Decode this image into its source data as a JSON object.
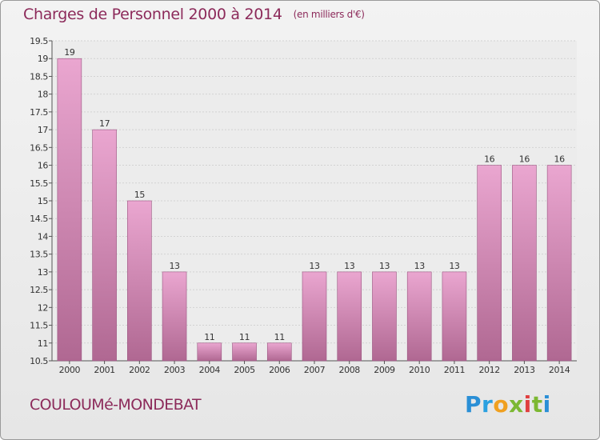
{
  "title": "Charges de Personnel 2000 à 2014",
  "subtitle": "(en milliers d'€)",
  "commune": "COULOUMé-MONDEBAT",
  "brand": {
    "letters": [
      "P",
      "r",
      "o",
      "x",
      "i",
      "t",
      "i"
    ],
    "colors": [
      "#2a8fd6",
      "#2aa0e0",
      "#f0a020",
      "#7cb832",
      "#e04040",
      "#7cb832",
      "#2a8fd6"
    ]
  },
  "colors": {
    "bar_top": "#eaa6d0",
    "bar_bottom": "#b06892",
    "bar_edge": "#9a5580",
    "title": "#8c2a5a"
  },
  "chart_data": {
    "type": "bar",
    "categories": [
      "2000",
      "2001",
      "2002",
      "2003",
      "2004",
      "2005",
      "2006",
      "2007",
      "2008",
      "2009",
      "2010",
      "2011",
      "2012",
      "2013",
      "2014"
    ],
    "values": [
      19,
      17,
      15,
      13,
      11,
      11,
      11,
      13,
      13,
      13,
      13,
      13,
      16,
      16,
      16
    ],
    "data_labels": [
      "19",
      "17",
      "15",
      "13",
      "11",
      "11",
      "11",
      "13",
      "13",
      "13",
      "13",
      "13",
      "16",
      "16",
      "16"
    ],
    "ylim": [
      10.5,
      19.5
    ],
    "yticks": [
      "10.5",
      "11",
      "11.5",
      "12",
      "12.5",
      "13",
      "13.5",
      "14",
      "14.5",
      "15",
      "15.5",
      "16",
      "16.5",
      "17",
      "17.5",
      "18",
      "18.5",
      "19",
      "19.5"
    ],
    "grid": true
  }
}
